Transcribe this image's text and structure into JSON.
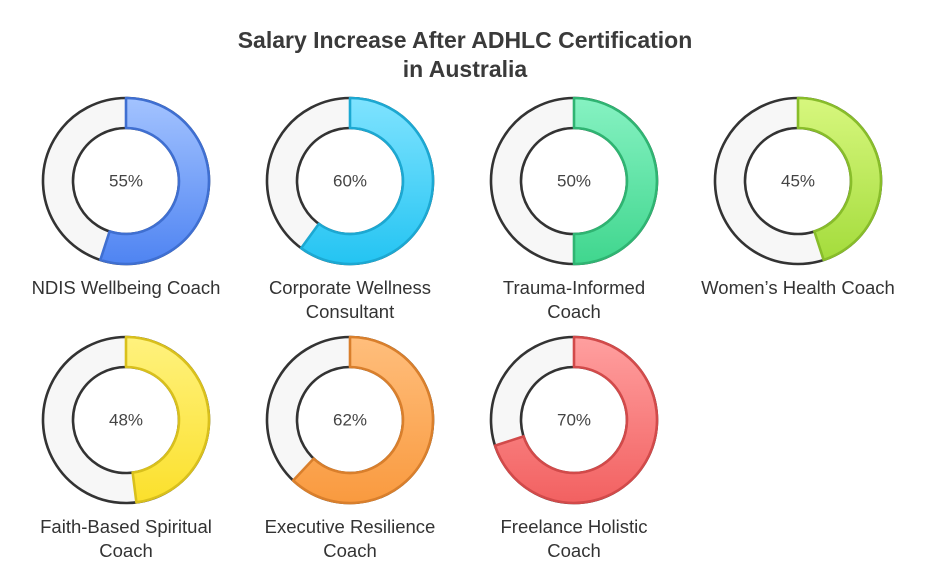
{
  "chart_data": {
    "type": "pie",
    "subtype": "donut-grid",
    "title_lines": [
      "Salary Increase After ADHLC Certification",
      "in Australia"
    ],
    "unit": "%",
    "items": [
      {
        "label_lines": [
          "NDIS Wellbeing Coach"
        ],
        "value": 55,
        "display": "55%",
        "color_light": "#a3c3ff",
        "color_dark": "#4f84f2",
        "stroke": "#3f6fd1"
      },
      {
        "label_lines": [
          "Corporate Wellness",
          "Consultant"
        ],
        "value": 60,
        "display": "60%",
        "color_light": "#7fe3ff",
        "color_dark": "#24c4f2",
        "stroke": "#1ca8d2"
      },
      {
        "label_lines": [
          "Trauma-Informed",
          "Coach"
        ],
        "value": 50,
        "display": "50%",
        "color_light": "#86f2c2",
        "color_dark": "#40d68e",
        "stroke": "#2fb472"
      },
      {
        "label_lines": [
          "Women’s Health Coach"
        ],
        "value": 45,
        "display": "45%",
        "color_light": "#d7f77e",
        "color_dark": "#a4dc3c",
        "stroke": "#88bd2a"
      },
      {
        "label_lines": [
          "Faith-Based Spiritual",
          "Coach"
        ],
        "value": 48,
        "display": "48%",
        "color_light": "#fff27e",
        "color_dark": "#fbe02c",
        "stroke": "#d9c01c"
      },
      {
        "label_lines": [
          "Executive Resilience",
          "Coach"
        ],
        "value": 62,
        "display": "62%",
        "color_light": "#ffbe7c",
        "color_dark": "#f99a3f",
        "stroke": "#d97f2c"
      },
      {
        "label_lines": [
          "Freelance Holistic",
          "Coach"
        ],
        "value": 70,
        "display": "70%",
        "color_light": "#ff9f9f",
        "color_dark": "#f26161",
        "stroke": "#d24a4a"
      }
    ],
    "track_color": "#f7f7f7",
    "track_stroke": "#333333"
  }
}
